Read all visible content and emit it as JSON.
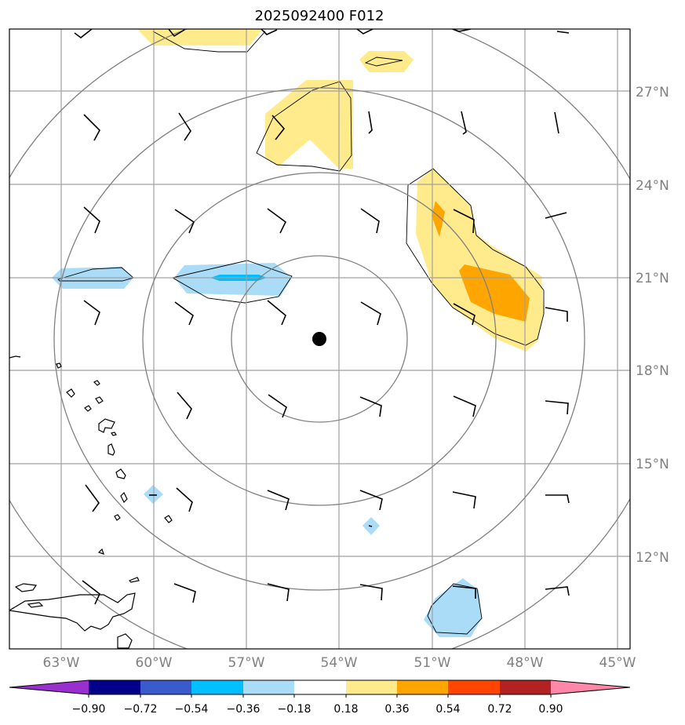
{
  "title": "2025092400 F012",
  "lat_labels": [
    "27°N",
    "24°N",
    "21°N",
    "18°N",
    "15°N",
    "12°N"
  ],
  "lon_labels": [
    "63°W",
    "60°W",
    "57°W",
    "54°W",
    "51°W",
    "48°W",
    "45°W"
  ],
  "colorbar": {
    "ticks": [
      "−0.90",
      "−0.72",
      "−0.54",
      "−0.36",
      "−0.18",
      "0.18",
      "0.36",
      "0.54",
      "0.72",
      "0.90"
    ],
    "colors": [
      "#9a2fd0",
      "#00008b",
      "#3a5bcc",
      "#00bfff",
      "#aadcf8",
      "#ffffff",
      "#ffeb8c",
      "#ffa500",
      "#ff4500",
      "#b22222",
      "#ff88aa"
    ]
  },
  "colors": {
    "light_blue": "#aadcf8",
    "cyan": "#00bfff",
    "light_yellow": "#ffeb8c",
    "orange": "#ffa500",
    "grid": "#a0a0a0",
    "range_rings": "#808080"
  },
  "storm_center_icon": "storm-center-icon"
}
